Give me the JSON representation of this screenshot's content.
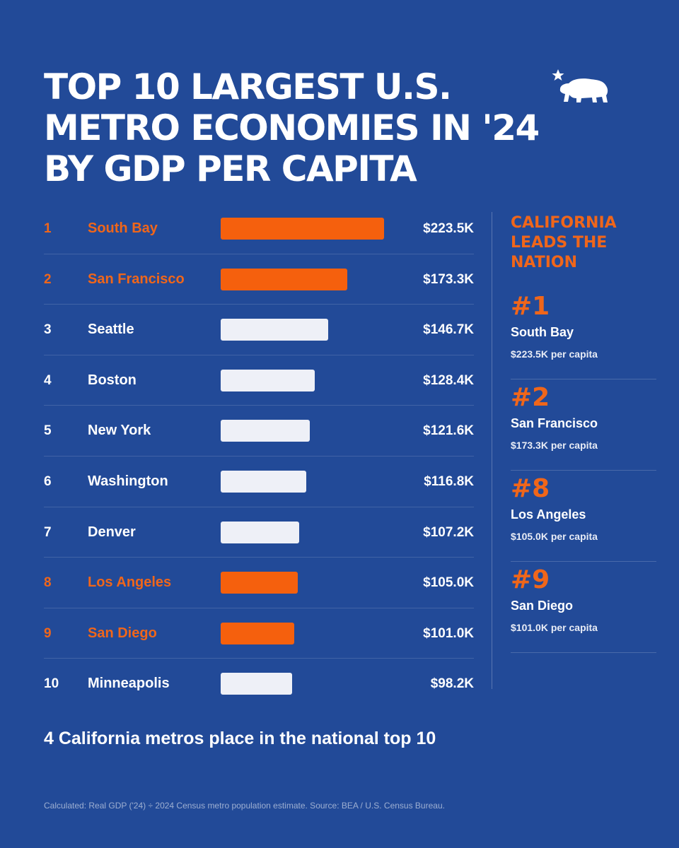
{
  "title": "TOP 10 LARGEST U.S. METRO ECONOMIES IN '24 BY GDP PER CAPITA",
  "logo": "california-bear-icon",
  "colors": {
    "background": "#224a98",
    "highlight": "#f5600d",
    "bar_default": "#eef0f7"
  },
  "chart_data": {
    "type": "bar",
    "orientation": "horizontal",
    "categories": [
      "South Bay",
      "San Francisco",
      "Seattle",
      "Boston",
      "New York",
      "Washington",
      "Denver",
      "Los Angeles",
      "San Diego",
      "Minneapolis"
    ],
    "values": [
      223.5,
      173.3,
      146.7,
      128.4,
      121.6,
      116.8,
      107.2,
      105.0,
      101.0,
      98.2
    ],
    "ranks": [
      "1",
      "2",
      "3",
      "4",
      "5",
      "6",
      "7",
      "8",
      "9",
      "10"
    ],
    "labels": [
      "$223.5K",
      "$173.3K",
      "$146.7K",
      "$128.4K",
      "$121.6K",
      "$116.8K",
      "$107.2K",
      "$105.0K",
      "$101.0K",
      "$98.2K"
    ],
    "highlighted": [
      true,
      true,
      false,
      false,
      false,
      false,
      false,
      true,
      true,
      false
    ],
    "xlim": [
      0,
      223.5
    ]
  },
  "sidebar": {
    "heading": "CALIFORNIA LEADS THE NATION",
    "cards": [
      {
        "rank": "#1",
        "name": "South Bay",
        "value": "$223.5K per capita"
      },
      {
        "rank": "#2",
        "name": "San Francisco",
        "value": "$173.3K per capita"
      },
      {
        "rank": "#8",
        "name": "Los Angeles",
        "value": "$105.0K per capita"
      },
      {
        "rank": "#9",
        "name": "San Diego",
        "value": "$101.0K per capita"
      }
    ]
  },
  "footer_note": "4 California metros place in the national top 10",
  "source": "Calculated: Real GDP ('24) ÷ 2024 Census metro population estimate. Source: BEA / U.S. Census Bureau."
}
